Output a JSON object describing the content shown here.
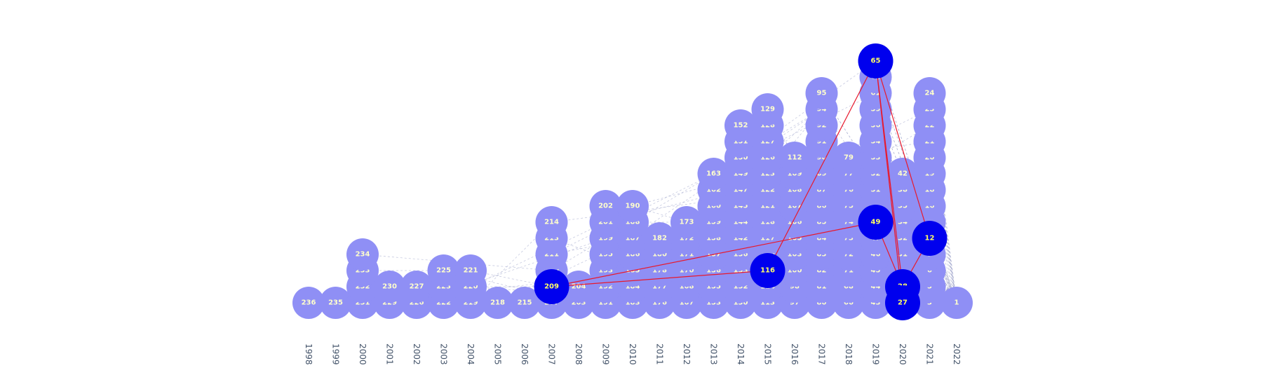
{
  "graph": {
    "columns": [
      {
        "year": "1998",
        "nodes": [
          "236"
        ]
      },
      {
        "year": "1999",
        "nodes": [
          "235"
        ]
      },
      {
        "year": "2000",
        "nodes": [
          "231",
          "232",
          "233",
          "234"
        ]
      },
      {
        "year": "2001",
        "nodes": [
          "229",
          "230"
        ]
      },
      {
        "year": "2002",
        "nodes": [
          "226",
          "227"
        ]
      },
      {
        "year": "2003",
        "nodes": [
          "222",
          "223",
          "225"
        ]
      },
      {
        "year": "2004",
        "nodes": [
          "219",
          "220",
          "221"
        ]
      },
      {
        "year": "2005",
        "nodes": [
          "218"
        ]
      },
      {
        "year": "2006",
        "nodes": [
          "215"
        ]
      },
      {
        "year": "2007",
        "nodes": [
          "207",
          "209",
          "210",
          "211",
          "213",
          "214"
        ]
      },
      {
        "year": "2008",
        "nodes": [
          "203",
          "204"
        ]
      },
      {
        "year": "2009",
        "nodes": [
          "191",
          "192",
          "193",
          "195",
          "199",
          "201",
          "202"
        ]
      },
      {
        "year": "2010",
        "nodes": [
          "183",
          "184",
          "185",
          "186",
          "187",
          "188",
          "190"
        ]
      },
      {
        "year": "2011",
        "nodes": [
          "176",
          "177",
          "178",
          "180",
          "182"
        ]
      },
      {
        "year": "2012",
        "nodes": [
          "167",
          "168",
          "170",
          "171",
          "172",
          "173"
        ]
      },
      {
        "year": "2013",
        "nodes": [
          "153",
          "155",
          "156",
          "157",
          "158",
          "159",
          "160",
          "162",
          "163"
        ]
      },
      {
        "year": "2014",
        "nodes": [
          "130",
          "132",
          "133",
          "136",
          "142",
          "144",
          "145",
          "147",
          "149",
          "150",
          "151",
          "152"
        ]
      },
      {
        "year": "2015",
        "nodes": [
          "113",
          "114",
          "116",
          "116",
          "117",
          "118",
          "121",
          "122",
          "123",
          "126",
          "127",
          "128",
          "129"
        ]
      },
      {
        "year": "2016",
        "nodes": [
          "97",
          "98",
          "100",
          "103",
          "105",
          "106",
          "107",
          "108",
          "109",
          "112"
        ]
      },
      {
        "year": "2017",
        "nodes": [
          "80",
          "81",
          "82",
          "83",
          "84",
          "85",
          "86",
          "87",
          "89",
          "90",
          "91",
          "92",
          "94",
          "95"
        ]
      },
      {
        "year": "2018",
        "nodes": [
          "66",
          "68",
          "71",
          "72",
          "73",
          "74",
          "75",
          "76",
          "77",
          "79"
        ]
      },
      {
        "year": "2019",
        "nodes": [
          "43",
          "44",
          "45",
          "46",
          "47",
          "49",
          "50",
          "51",
          "52",
          "53",
          "54",
          "56",
          "59",
          "61",
          "62",
          "65"
        ]
      },
      {
        "year": "2020",
        "nodes": [
          "27",
          "28",
          "30",
          "31",
          "32",
          "34",
          "35",
          "38",
          "42"
        ]
      },
      {
        "year": "2021",
        "nodes": [
          "3",
          "5",
          "6",
          "7",
          "12",
          "15",
          "16",
          "18",
          "19",
          "20",
          "21",
          "22",
          "23",
          "24"
        ]
      },
      {
        "year": "2022",
        "nodes": [
          "1"
        ]
      }
    ],
    "highlighted": [
      "65",
      "49",
      "12",
      "116",
      "209",
      "28",
      "27"
    ],
    "highlight_edges": [
      [
        "65",
        "116"
      ],
      [
        "65",
        "28"
      ],
      [
        "65",
        "12"
      ],
      [
        "49",
        "209"
      ],
      [
        "116",
        "209"
      ],
      [
        "49",
        "28"
      ],
      [
        "12",
        "28"
      ],
      [
        "65",
        "27"
      ]
    ],
    "colors": {
      "node": "#8f8ff5",
      "node_label": "#ffffcc",
      "highlight_node": "#0000ee",
      "highlight_label": "#ffff66",
      "highlight_edge": "#e8192c",
      "background_edge": "#9aa0c8",
      "year_label": "#44546a"
    }
  }
}
